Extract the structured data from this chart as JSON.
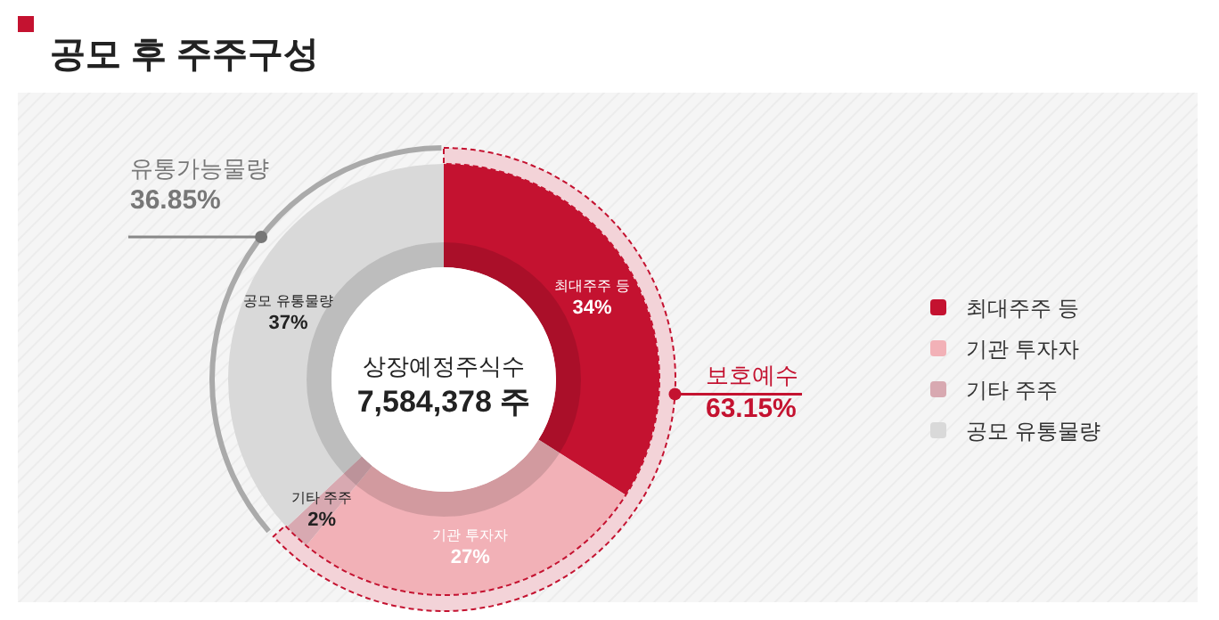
{
  "chart_data": [
    {
      "type": "donut",
      "title": "공모 후 주주구성",
      "categories": [
        "최대주주 등",
        "기관 투자자",
        "기타 주주",
        "공모 유통물량"
      ],
      "values": [
        34,
        27,
        2,
        37
      ],
      "colors": [
        "#c41230",
        "#f2b1b7",
        "#d8a9b1",
        "#d9d9d9"
      ],
      "value_labels": [
        "34%",
        "27%",
        "2%",
        "37%"
      ],
      "legend": "right",
      "annotations": [
        "상장예정주식수",
        "7,584,378 주"
      ]
    },
    {
      "type": "donut",
      "categories": [
        "보호예수",
        "유통가능물량"
      ],
      "values": [
        63.15,
        36.85
      ],
      "colors": [
        "#c41230",
        "#aaaaaa"
      ],
      "value_labels": [
        "63.15%",
        "36.85%"
      ]
    }
  ]
}
